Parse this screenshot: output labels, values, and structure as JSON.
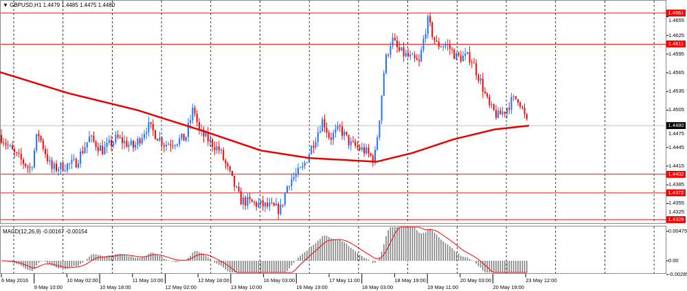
{
  "header": {
    "symbol": "GBPUSD,H1",
    "ohlc": "1.4479 1.4485 1.4475 1.4480"
  },
  "macd": {
    "label": "MACD(12,26,9) -0.00167 -0.00154",
    "axis": [
      "0.00475",
      "0.00",
      "-0.00285"
    ]
  },
  "colors": {
    "bull": "#1e6fff",
    "bear": "#ff0000",
    "level": "#ff0000",
    "ma": "#e80000",
    "hist": "#808080",
    "signal": "#ff0000"
  },
  "chart_data": {
    "type": "candlestick",
    "price_axis": [
      "1.4655",
      "1.4625",
      "1.4595",
      "1.4565",
      "1.4535",
      "1.4505",
      "1.4475",
      "1.4445",
      "1.4415",
      "1.4385",
      "1.4355",
      "1.4325"
    ],
    "ylim": [
      1.4322,
      1.468
    ],
    "levels": [
      "1.4661",
      "1.4611",
      "1.4402",
      "1.4372",
      "1.4329"
    ],
    "current_price": "1.4480",
    "dates": [
      "6 May 2016",
      "9 May 10:00",
      "10 May 02:00",
      "10 May 18:00",
      "11 May 10:00",
      "12 May 02:00",
      "12 May 18:00",
      "13 May 10:00",
      "16 May 03:00",
      "16 May 19:00",
      "17 May 11:00",
      "18 May 03:00",
      "18 May 19:00",
      "19 May 11:00",
      "20 May 03:00",
      "20 May 19:00",
      "23 May 12:00"
    ],
    "price_path": [
      [
        0,
        1.4465
      ],
      [
        20,
        1.4435
      ],
      [
        45,
        1.441
      ],
      [
        55,
        1.447
      ],
      [
        75,
        1.441
      ],
      [
        110,
        1.442
      ],
      [
        130,
        1.446
      ],
      [
        150,
        1.444
      ],
      [
        170,
        1.446
      ],
      [
        195,
        1.4445
      ],
      [
        215,
        1.448
      ],
      [
        240,
        1.445
      ],
      [
        270,
        1.446
      ],
      [
        282,
        1.451
      ],
      [
        290,
        1.447
      ],
      [
        320,
        1.444
      ],
      [
        335,
        1.44
      ],
      [
        350,
        1.436
      ],
      [
        370,
        1.4355
      ],
      [
        390,
        1.435
      ],
      [
        408,
        1.4345
      ],
      [
        420,
        1.439
      ],
      [
        440,
        1.441
      ],
      [
        455,
        1.445
      ],
      [
        470,
        1.449
      ],
      [
        480,
        1.446
      ],
      [
        495,
        1.4475
      ],
      [
        510,
        1.445
      ],
      [
        530,
        1.444
      ],
      [
        545,
        1.4425
      ],
      [
        552,
        1.449
      ],
      [
        560,
        1.458
      ],
      [
        570,
        1.462
      ],
      [
        580,
        1.46
      ],
      [
        595,
        1.459
      ],
      [
        610,
        1.458
      ],
      [
        622,
        1.465
      ],
      [
        635,
        1.461
      ],
      [
        650,
        1.461
      ],
      [
        665,
        1.459
      ],
      [
        685,
        1.459
      ],
      [
        700,
        1.455
      ],
      [
        712,
        1.451
      ],
      [
        725,
        1.4495
      ],
      [
        735,
        1.4505
      ],
      [
        745,
        1.452
      ],
      [
        755,
        1.4525
      ],
      [
        762,
        1.45
      ],
      [
        768,
        1.448
      ]
    ],
    "moving_average": [
      [
        0,
        1.4566
      ],
      [
        100,
        1.4532
      ],
      [
        200,
        1.4505
      ],
      [
        300,
        1.447
      ],
      [
        380,
        1.444
      ],
      [
        450,
        1.4428
      ],
      [
        548,
        1.4422
      ],
      [
        600,
        1.4436
      ],
      [
        660,
        1.4458
      ],
      [
        720,
        1.4474
      ],
      [
        770,
        1.448
      ]
    ]
  }
}
